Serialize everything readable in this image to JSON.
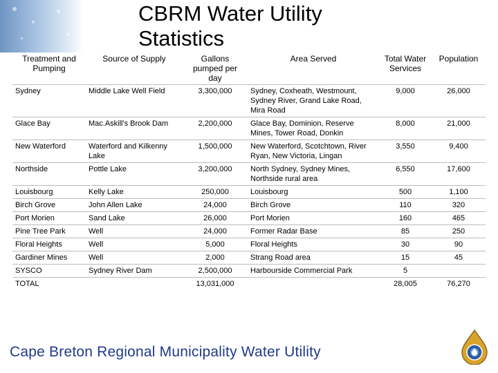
{
  "title": "CBRM Water Utility Statistics",
  "headers": [
    "Treatment and Pumping",
    "Source of Supply",
    "Gallons pumped per day",
    "Area Served",
    "Total Water Services",
    "Population"
  ],
  "rows": [
    {
      "plant": "Sydney",
      "source": "Middle Lake Well Field",
      "gallons": "3,300,000",
      "area": "Sydney, Coxheath, Westmount, Sydney River, Grand Lake Road, Mira Road",
      "services": "9,000",
      "population": "26,000"
    },
    {
      "plant": "Glace Bay",
      "source": "Mac.Askill's Brook Dam",
      "gallons": "2,200,000",
      "area": "Glace Bay, Dominion, Reserve Mines, Tower Road, Donkin",
      "services": "8,000",
      "population": "21,000"
    },
    {
      "plant": "New Waterford",
      "source": "Waterford and Kilkenny Lake",
      "gallons": "1,500,000",
      "area": "New Waterford, Scotchtown, River Ryan, New Victoria, Lingan",
      "services": "3,550",
      "population": "9,400"
    },
    {
      "plant": "Northside",
      "source": "Pottle Lake",
      "gallons": "3,200,000",
      "area": "North Sydney, Sydney Mines, Northside rural area",
      "services": "6,550",
      "population": "17,600"
    },
    {
      "plant": "Louisbourg",
      "source": "Kelly Lake",
      "gallons": "250,000",
      "area": "Louisbourg",
      "services": "500",
      "population": "1,100"
    },
    {
      "plant": "Birch Grove",
      "source": "John Allen Lake",
      "gallons": "24,000",
      "area": "Birch Grove",
      "services": "110",
      "population": "320"
    },
    {
      "plant": "Port Morien",
      "source": "Sand Lake",
      "gallons": "26,000",
      "area": "Port Morien",
      "services": "160",
      "population": "465"
    },
    {
      "plant": "Pine Tree Park",
      "source": "Well",
      "gallons": "24,000",
      "area": "Former Radar Base",
      "services": "85",
      "population": "250"
    },
    {
      "plant": "Floral Heights",
      "source": "Well",
      "gallons": "5,000",
      "area": "Floral Heights",
      "services": "30",
      "population": "90"
    },
    {
      "plant": "Gardiner Mines",
      "source": "Well",
      "gallons": "2,000",
      "area": "Strang Road area",
      "services": "15",
      "population": "45"
    },
    {
      "plant": "SYSCO",
      "source": "Sydney River Dam",
      "gallons": "2,500,000",
      "area": "Harbourside Commercial Park",
      "services": "5",
      "population": ""
    }
  ],
  "total": {
    "label": "TOTAL",
    "gallons": "13,031,000",
    "services": "28,005",
    "population": "76,270"
  },
  "footer": "Cape Breton Regional Municipality Water Utility",
  "logo_icon": "water-drop-emblem-icon",
  "colors": {
    "footer_text": "#1f3a8a",
    "logo": "#d9a32b"
  }
}
